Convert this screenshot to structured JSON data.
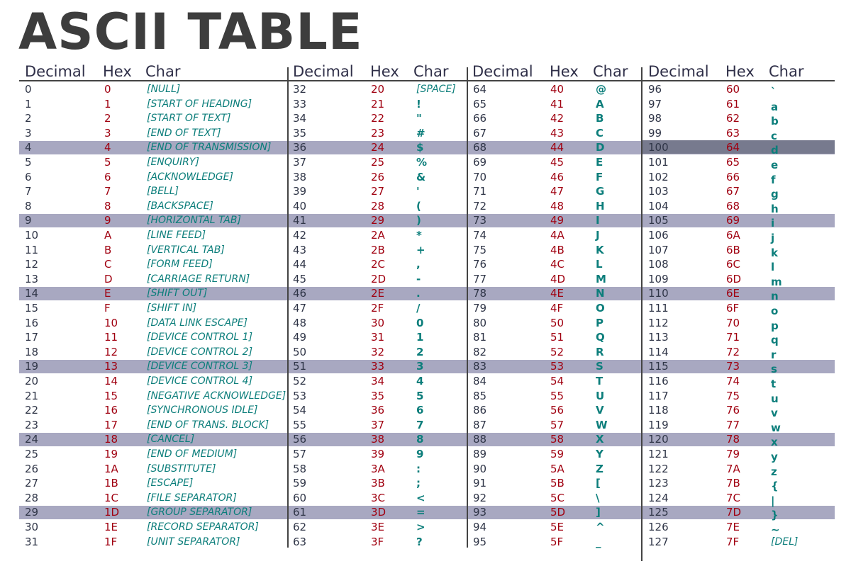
{
  "title": "ASCII TABLE",
  "headers": {
    "decimal": "Decimal",
    "hex": "Hex",
    "char": "Char"
  },
  "colors": {
    "title": "#3d3d3d",
    "decimal": "#2f3547",
    "hex": "#a00010",
    "char": "#0c7e7b",
    "band": "#a8a8c1",
    "highlight": "#777a8e"
  },
  "banded_rows": [
    4,
    9,
    14,
    19,
    24,
    29
  ],
  "highlighted_row": {
    "column": 3,
    "row": 4
  },
  "columns": [
    {
      "rows": [
        {
          "dec": "0",
          "hex": "0",
          "char": "[NULL]"
        },
        {
          "dec": "1",
          "hex": "1",
          "char": "[START OF HEADING]"
        },
        {
          "dec": "2",
          "hex": "2",
          "char": "[START OF TEXT]"
        },
        {
          "dec": "3",
          "hex": "3",
          "char": "[END OF TEXT]"
        },
        {
          "dec": "4",
          "hex": "4",
          "char": "[END OF TRANSMISSION]"
        },
        {
          "dec": "5",
          "hex": "5",
          "char": "[ENQUIRY]"
        },
        {
          "dec": "6",
          "hex": "6",
          "char": "[ACKNOWLEDGE]"
        },
        {
          "dec": "7",
          "hex": "7",
          "char": "[BELL]"
        },
        {
          "dec": "8",
          "hex": "8",
          "char": "[BACKSPACE]"
        },
        {
          "dec": "9",
          "hex": "9",
          "char": "[HORIZONTAL TAB]"
        },
        {
          "dec": "10",
          "hex": "A",
          "char": "[LINE FEED]"
        },
        {
          "dec": "11",
          "hex": "B",
          "char": "[VERTICAL TAB]"
        },
        {
          "dec": "12",
          "hex": "C",
          "char": "[FORM FEED]"
        },
        {
          "dec": "13",
          "hex": "D",
          "char": "[CARRIAGE RETURN]"
        },
        {
          "dec": "14",
          "hex": "E",
          "char": "[SHIFT OUT]"
        },
        {
          "dec": "15",
          "hex": "F",
          "char": "[SHIFT IN]"
        },
        {
          "dec": "16",
          "hex": "10",
          "char": "[DATA LINK ESCAPE]"
        },
        {
          "dec": "17",
          "hex": "11",
          "char": "[DEVICE CONTROL 1]"
        },
        {
          "dec": "18",
          "hex": "12",
          "char": "[DEVICE CONTROL 2]"
        },
        {
          "dec": "19",
          "hex": "13",
          "char": "[DEVICE CONTROL 3]"
        },
        {
          "dec": "20",
          "hex": "14",
          "char": "[DEVICE CONTROL 4]"
        },
        {
          "dec": "21",
          "hex": "15",
          "char": "[NEGATIVE ACKNOWLEDGE]"
        },
        {
          "dec": "22",
          "hex": "16",
          "char": "[SYNCHRONOUS IDLE]"
        },
        {
          "dec": "23",
          "hex": "17",
          "char": "[END OF TRANS. BLOCK]"
        },
        {
          "dec": "24",
          "hex": "18",
          "char": "[CANCEL]"
        },
        {
          "dec": "25",
          "hex": "19",
          "char": "[END OF MEDIUM]"
        },
        {
          "dec": "26",
          "hex": "1A",
          "char": "[SUBSTITUTE]"
        },
        {
          "dec": "27",
          "hex": "1B",
          "char": "[ESCAPE]"
        },
        {
          "dec": "28",
          "hex": "1C",
          "char": "[FILE SEPARATOR]"
        },
        {
          "dec": "29",
          "hex": "1D",
          "char": "[GROUP SEPARATOR]"
        },
        {
          "dec": "30",
          "hex": "1E",
          "char": "[RECORD SEPARATOR]"
        },
        {
          "dec": "31",
          "hex": "1F",
          "char": "[UNIT SEPARATOR]"
        }
      ]
    },
    {
      "rows": [
        {
          "dec": "32",
          "hex": "20",
          "char": "[SPACE]"
        },
        {
          "dec": "33",
          "hex": "21",
          "char": "!"
        },
        {
          "dec": "34",
          "hex": "22",
          "char": "\""
        },
        {
          "dec": "35",
          "hex": "23",
          "char": "#"
        },
        {
          "dec": "36",
          "hex": "24",
          "char": "$"
        },
        {
          "dec": "37",
          "hex": "25",
          "char": "%"
        },
        {
          "dec": "38",
          "hex": "26",
          "char": "&"
        },
        {
          "dec": "39",
          "hex": "27",
          "char": "'"
        },
        {
          "dec": "40",
          "hex": "28",
          "char": "("
        },
        {
          "dec": "41",
          "hex": "29",
          "char": ")"
        },
        {
          "dec": "42",
          "hex": "2A",
          "char": "*"
        },
        {
          "dec": "43",
          "hex": "2B",
          "char": "+"
        },
        {
          "dec": "44",
          "hex": "2C",
          "char": ","
        },
        {
          "dec": "45",
          "hex": "2D",
          "char": "-"
        },
        {
          "dec": "46",
          "hex": "2E",
          "char": "."
        },
        {
          "dec": "47",
          "hex": "2F",
          "char": "/"
        },
        {
          "dec": "48",
          "hex": "30",
          "char": "0"
        },
        {
          "dec": "49",
          "hex": "31",
          "char": "1"
        },
        {
          "dec": "50",
          "hex": "32",
          "char": "2"
        },
        {
          "dec": "51",
          "hex": "33",
          "char": "3"
        },
        {
          "dec": "52",
          "hex": "34",
          "char": "4"
        },
        {
          "dec": "53",
          "hex": "35",
          "char": "5"
        },
        {
          "dec": "54",
          "hex": "36",
          "char": "6"
        },
        {
          "dec": "55",
          "hex": "37",
          "char": "7"
        },
        {
          "dec": "56",
          "hex": "38",
          "char": "8"
        },
        {
          "dec": "57",
          "hex": "39",
          "char": "9"
        },
        {
          "dec": "58",
          "hex": "3A",
          "char": ":"
        },
        {
          "dec": "59",
          "hex": "3B",
          "char": ";"
        },
        {
          "dec": "60",
          "hex": "3C",
          "char": "<"
        },
        {
          "dec": "61",
          "hex": "3D",
          "char": "="
        },
        {
          "dec": "62",
          "hex": "3E",
          "char": ">"
        },
        {
          "dec": "63",
          "hex": "3F",
          "char": "?"
        }
      ]
    },
    {
      "rows": [
        {
          "dec": "64",
          "hex": "40",
          "char": "@"
        },
        {
          "dec": "65",
          "hex": "41",
          "char": "A"
        },
        {
          "dec": "66",
          "hex": "42",
          "char": "B"
        },
        {
          "dec": "67",
          "hex": "43",
          "char": "C"
        },
        {
          "dec": "68",
          "hex": "44",
          "char": "D"
        },
        {
          "dec": "69",
          "hex": "45",
          "char": "E"
        },
        {
          "dec": "70",
          "hex": "46",
          "char": "F"
        },
        {
          "dec": "71",
          "hex": "47",
          "char": "G"
        },
        {
          "dec": "72",
          "hex": "48",
          "char": "H"
        },
        {
          "dec": "73",
          "hex": "49",
          "char": "I"
        },
        {
          "dec": "74",
          "hex": "4A",
          "char": "J"
        },
        {
          "dec": "75",
          "hex": "4B",
          "char": "K"
        },
        {
          "dec": "76",
          "hex": "4C",
          "char": "L"
        },
        {
          "dec": "77",
          "hex": "4D",
          "char": "M"
        },
        {
          "dec": "78",
          "hex": "4E",
          "char": "N"
        },
        {
          "dec": "79",
          "hex": "4F",
          "char": "O"
        },
        {
          "dec": "80",
          "hex": "50",
          "char": "P"
        },
        {
          "dec": "81",
          "hex": "51",
          "char": "Q"
        },
        {
          "dec": "82",
          "hex": "52",
          "char": "R"
        },
        {
          "dec": "83",
          "hex": "53",
          "char": "S"
        },
        {
          "dec": "84",
          "hex": "54",
          "char": "T"
        },
        {
          "dec": "85",
          "hex": "55",
          "char": "U"
        },
        {
          "dec": "86",
          "hex": "56",
          "char": "V"
        },
        {
          "dec": "87",
          "hex": "57",
          "char": "W"
        },
        {
          "dec": "88",
          "hex": "58",
          "char": "X"
        },
        {
          "dec": "89",
          "hex": "59",
          "char": "Y"
        },
        {
          "dec": "90",
          "hex": "5A",
          "char": "Z"
        },
        {
          "dec": "91",
          "hex": "5B",
          "char": "["
        },
        {
          "dec": "92",
          "hex": "5C",
          "char": "\\"
        },
        {
          "dec": "93",
          "hex": "5D",
          "char": "]"
        },
        {
          "dec": "94",
          "hex": "5E",
          "char": "^"
        },
        {
          "dec": "95",
          "hex": "5F",
          "char": "_"
        }
      ]
    },
    {
      "rows": [
        {
          "dec": "96",
          "hex": "60",
          "char": "`"
        },
        {
          "dec": "97",
          "hex": "61",
          "char": "a"
        },
        {
          "dec": "98",
          "hex": "62",
          "char": "b"
        },
        {
          "dec": "99",
          "hex": "63",
          "char": "c"
        },
        {
          "dec": "100",
          "hex": "64",
          "char": "d"
        },
        {
          "dec": "101",
          "hex": "65",
          "char": "e"
        },
        {
          "dec": "102",
          "hex": "66",
          "char": "f"
        },
        {
          "dec": "103",
          "hex": "67",
          "char": "g"
        },
        {
          "dec": "104",
          "hex": "68",
          "char": "h"
        },
        {
          "dec": "105",
          "hex": "69",
          "char": "i"
        },
        {
          "dec": "106",
          "hex": "6A",
          "char": "j"
        },
        {
          "dec": "107",
          "hex": "6B",
          "char": "k"
        },
        {
          "dec": "108",
          "hex": "6C",
          "char": "l"
        },
        {
          "dec": "109",
          "hex": "6D",
          "char": "m"
        },
        {
          "dec": "110",
          "hex": "6E",
          "char": "n"
        },
        {
          "dec": "111",
          "hex": "6F",
          "char": "o"
        },
        {
          "dec": "112",
          "hex": "70",
          "char": "p"
        },
        {
          "dec": "113",
          "hex": "71",
          "char": "q"
        },
        {
          "dec": "114",
          "hex": "72",
          "char": "r"
        },
        {
          "dec": "115",
          "hex": "73",
          "char": "s"
        },
        {
          "dec": "116",
          "hex": "74",
          "char": "t"
        },
        {
          "dec": "117",
          "hex": "75",
          "char": "u"
        },
        {
          "dec": "118",
          "hex": "76",
          "char": "v"
        },
        {
          "dec": "119",
          "hex": "77",
          "char": "w"
        },
        {
          "dec": "120",
          "hex": "78",
          "char": "x"
        },
        {
          "dec": "121",
          "hex": "79",
          "char": "y"
        },
        {
          "dec": "122",
          "hex": "7A",
          "char": "z"
        },
        {
          "dec": "123",
          "hex": "7B",
          "char": "{"
        },
        {
          "dec": "124",
          "hex": "7C",
          "char": "|"
        },
        {
          "dec": "125",
          "hex": "7D",
          "char": "}"
        },
        {
          "dec": "126",
          "hex": "7E",
          "char": "~"
        },
        {
          "dec": "127",
          "hex": "7F",
          "char": "[DEL]"
        }
      ]
    }
  ]
}
